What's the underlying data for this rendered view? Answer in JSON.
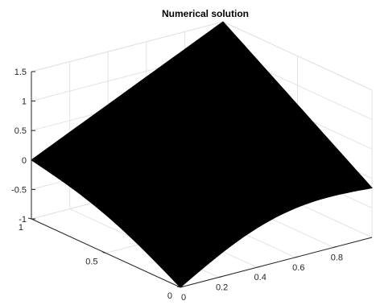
{
  "chart_data": {
    "type": "surface",
    "title": "Numerical solution",
    "xlabel": "",
    "ylabel": "",
    "zlabel": "",
    "x_ticks": [
      "0",
      "0.2",
      "0.4",
      "0.6",
      "0.8"
    ],
    "y_ticks": [
      "0",
      "0.5",
      "1"
    ],
    "z_ticks": [
      "-1",
      "-0.5",
      "0",
      "0.5",
      "1",
      "1.5"
    ],
    "xlim": [
      0,
      1
    ],
    "ylim": [
      0,
      1
    ],
    "zlim": [
      -1,
      1.5
    ],
    "grid": true,
    "surface_color": "#000000",
    "corners": [
      {
        "x": 0,
        "y": 0,
        "z": -1
      },
      {
        "x": 1,
        "y": 0,
        "z": -0.16
      },
      {
        "x": 1,
        "y": 1,
        "z": 1.5
      },
      {
        "x": 0,
        "y": 1,
        "z": 0
      }
    ]
  }
}
